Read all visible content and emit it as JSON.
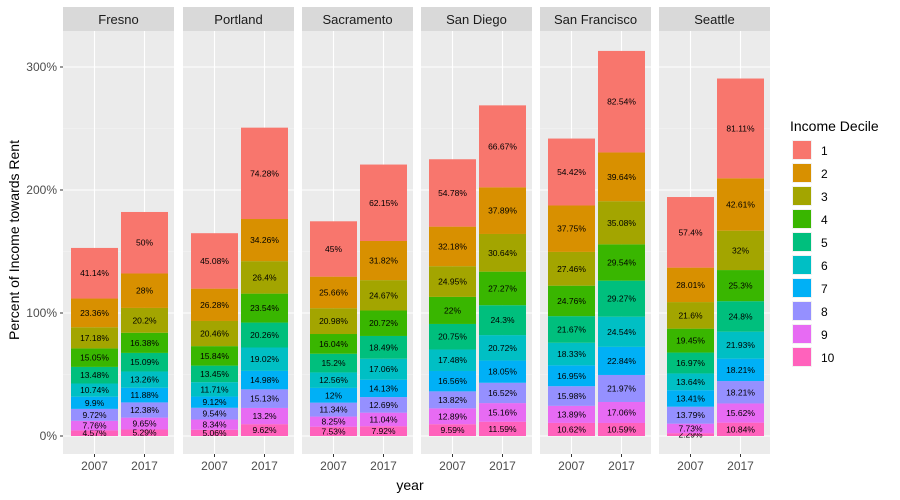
{
  "chart_data": {
    "type": "bar",
    "stacked": true,
    "facets": [
      "Fresno",
      "Portland",
      "Sacramento",
      "San Diego",
      "San Francisco",
      "Seattle"
    ],
    "categories": [
      "2007",
      "2017"
    ],
    "xlabel": "year",
    "ylabel": "Percent of Income towards Rent",
    "ylim": [
      0,
      320
    ],
    "yticks": [
      0,
      100,
      200,
      300
    ],
    "ytick_labels": [
      "0%",
      "100%",
      "200%",
      "300%"
    ],
    "grid": true,
    "legend": {
      "title": "Income Decile",
      "position": "right",
      "entries": [
        "1",
        "2",
        "3",
        "4",
        "5",
        "6",
        "7",
        "8",
        "9",
        "10"
      ],
      "colors": [
        "#F8766D",
        "#D89000",
        "#A3A500",
        "#39B600",
        "#00BF7D",
        "#00BFC4",
        "#00B0F6",
        "#9590FF",
        "#E76BF3",
        "#FF62BC"
      ]
    },
    "series": [
      {
        "name": "1",
        "values": {
          "Fresno": [
            41.14,
            50
          ],
          "Portland": [
            45.08,
            74.28
          ],
          "Sacramento": [
            45,
            62.15
          ],
          "San Diego": [
            54.78,
            66.67
          ],
          "San Francisco": [
            54.42,
            82.54
          ],
          "Seattle": [
            57.4,
            81.11
          ]
        },
        "labels": {
          "Fresno": [
            "41.14%",
            "50%"
          ],
          "Portland": [
            "45.08%",
            "74.28%"
          ],
          "Sacramento": [
            "45%",
            "62.15%"
          ],
          "San Diego": [
            "54.78%",
            "66.67%"
          ],
          "San Francisco": [
            "54.42%",
            "82.54%"
          ],
          "Seattle": [
            "57.4%",
            "81.11%"
          ]
        }
      },
      {
        "name": "2",
        "values": {
          "Fresno": [
            23.36,
            28
          ],
          "Portland": [
            26.28,
            34.26
          ],
          "Sacramento": [
            25.66,
            31.82
          ],
          "San Diego": [
            32.18,
            37.89
          ],
          "San Francisco": [
            37.75,
            39.64
          ],
          "Seattle": [
            28.01,
            42.61
          ]
        },
        "labels": {
          "Fresno": [
            "23.36%",
            "28%"
          ],
          "Portland": [
            "26.28%",
            "34.26%"
          ],
          "Sacramento": [
            "25.66%",
            "31.82%"
          ],
          "San Diego": [
            "32.18%",
            "37.89%"
          ],
          "San Francisco": [
            "37.75%",
            "39.64%"
          ],
          "Seattle": [
            "28.01%",
            "42.61%"
          ]
        }
      },
      {
        "name": "3",
        "values": {
          "Fresno": [
            17.18,
            20.2
          ],
          "Portland": [
            20.46,
            26.4
          ],
          "Sacramento": [
            20.98,
            24.67
          ],
          "San Diego": [
            24.95,
            30.64
          ],
          "San Francisco": [
            27.46,
            35.08
          ],
          "Seattle": [
            21.6,
            32
          ]
        },
        "labels": {
          "Fresno": [
            "17.18%",
            "20.2%"
          ],
          "Portland": [
            "20.46%",
            "26.4%"
          ],
          "Sacramento": [
            "20.98%",
            "24.67%"
          ],
          "San Diego": [
            "24.95%",
            "30.64%"
          ],
          "San Francisco": [
            "27.46%",
            "35.08%"
          ],
          "Seattle": [
            "21.6%",
            "32%"
          ]
        }
      },
      {
        "name": "4",
        "values": {
          "Fresno": [
            15.05,
            16.38
          ],
          "Portland": [
            15.84,
            23.54
          ],
          "Sacramento": [
            16.04,
            20.72
          ],
          "San Diego": [
            22,
            27.27
          ],
          "San Francisco": [
            24.76,
            29.54
          ],
          "Seattle": [
            19.45,
            25.3
          ]
        },
        "labels": {
          "Fresno": [
            "15.05%",
            "16.38%"
          ],
          "Portland": [
            "15.84%",
            "23.54%"
          ],
          "Sacramento": [
            "16.04%",
            "20.72%"
          ],
          "San Diego": [
            "22%",
            "27.27%"
          ],
          "San Francisco": [
            "24.76%",
            "29.54%"
          ],
          "Seattle": [
            "19.45%",
            "25.3%"
          ]
        }
      },
      {
        "name": "5",
        "values": {
          "Fresno": [
            13.48,
            15.09
          ],
          "Portland": [
            13.45,
            20.26
          ],
          "Sacramento": [
            15.2,
            18.49
          ],
          "San Diego": [
            20.75,
            24.3
          ],
          "San Francisco": [
            21.67,
            29.27
          ],
          "Seattle": [
            16.97,
            24.8
          ]
        },
        "labels": {
          "Fresno": [
            "13.48%",
            "15.09%"
          ],
          "Portland": [
            "13.45%",
            "20.26%"
          ],
          "Sacramento": [
            "15.2%",
            "18.49%"
          ],
          "San Diego": [
            "20.75%",
            "24.3%"
          ],
          "San Francisco": [
            "21.67%",
            "29.27%"
          ],
          "Seattle": [
            "16.97%",
            "24.8%"
          ]
        }
      },
      {
        "name": "6",
        "values": {
          "Fresno": [
            10.74,
            13.26
          ],
          "Portland": [
            11.71,
            19.02
          ],
          "Sacramento": [
            12.56,
            17.06
          ],
          "San Diego": [
            17.48,
            20.72
          ],
          "San Francisco": [
            18.33,
            24.54
          ],
          "Seattle": [
            13.64,
            21.93
          ]
        },
        "labels": {
          "Fresno": [
            "10.74%",
            "13.26%"
          ],
          "Portland": [
            "11.71%",
            "19.02%"
          ],
          "Sacramento": [
            "12.56%",
            "17.06%"
          ],
          "San Diego": [
            "17.48%",
            "20.72%"
          ],
          "San Francisco": [
            "18.33%",
            "24.54%"
          ],
          "Seattle": [
            "13.64%",
            "21.93%"
          ]
        }
      },
      {
        "name": "7",
        "values": {
          "Fresno": [
            9.9,
            11.88
          ],
          "Portland": [
            9.12,
            14.98
          ],
          "Sacramento": [
            12,
            14.13
          ],
          "San Diego": [
            16.56,
            18.05
          ],
          "San Francisco": [
            16.95,
            22.84
          ],
          "Seattle": [
            13.41,
            18.21
          ]
        },
        "labels": {
          "Fresno": [
            "9.9%",
            "11.88%"
          ],
          "Portland": [
            "9.12%",
            "14.98%"
          ],
          "Sacramento": [
            "12%",
            "14.13%"
          ],
          "San Diego": [
            "16.56%",
            "18.05%"
          ],
          "San Francisco": [
            "16.95%",
            "22.84%"
          ],
          "Seattle": [
            "13.41%",
            "18.21%"
          ]
        }
      },
      {
        "name": "8",
        "values": {
          "Fresno": [
            9.72,
            12.38
          ],
          "Portland": [
            9.54,
            15.13
          ],
          "Sacramento": [
            11.34,
            12.69
          ],
          "San Diego": [
            13.82,
            16.52
          ],
          "San Francisco": [
            15.98,
            21.97
          ],
          "Seattle": [
            13.79,
            18.21
          ]
        },
        "labels": {
          "Fresno": [
            "9.72%",
            "12.38%"
          ],
          "Portland": [
            "9.54%",
            "15.13%"
          ],
          "Sacramento": [
            "11.34%",
            "12.69%"
          ],
          "San Diego": [
            "13.82%",
            "16.52%"
          ],
          "San Francisco": [
            "15.98%",
            "21.97%"
          ],
          "Seattle": [
            "13.79%",
            "18.21%"
          ]
        }
      },
      {
        "name": "9",
        "values": {
          "Fresno": [
            7.76,
            9.65
          ],
          "Portland": [
            8.34,
            13.2
          ],
          "Sacramento": [
            8.25,
            11.04
          ],
          "San Diego": [
            12.89,
            15.16
          ],
          "San Francisco": [
            13.89,
            17.06
          ],
          "Seattle": [
            7.73,
            15.62
          ]
        },
        "labels": {
          "Fresno": [
            "7.76%",
            "9.65%"
          ],
          "Portland": [
            "8.34%",
            "13.2%"
          ],
          "Sacramento": [
            "8.25%",
            "11.04%"
          ],
          "San Diego": [
            "12.89%",
            "15.16%"
          ],
          "San Francisco": [
            "13.89%",
            "17.06%"
          ],
          "Seattle": [
            "7.73%",
            "15.62%"
          ]
        }
      },
      {
        "name": "10",
        "values": {
          "Fresno": [
            4.57,
            5.29
          ],
          "Portland": [
            5.06,
            9.62
          ],
          "Sacramento": [
            7.53,
            7.92
          ],
          "San Diego": [
            9.59,
            11.59
          ],
          "San Francisco": [
            10.62,
            10.59
          ],
          "Seattle": [
            2.29,
            10.84
          ]
        },
        "labels": {
          "Fresno": [
            "4.57%",
            "5.29%"
          ],
          "Portland": [
            "5.06%",
            "9.62%"
          ],
          "Sacramento": [
            "7.53%",
            "7.92%"
          ],
          "San Diego": [
            "9.59%",
            "11.59%"
          ],
          "San Francisco": [
            "10.62%",
            "10.59%"
          ],
          "Seattle": [
            "2.29%",
            "10.84%"
          ]
        }
      }
    ]
  }
}
